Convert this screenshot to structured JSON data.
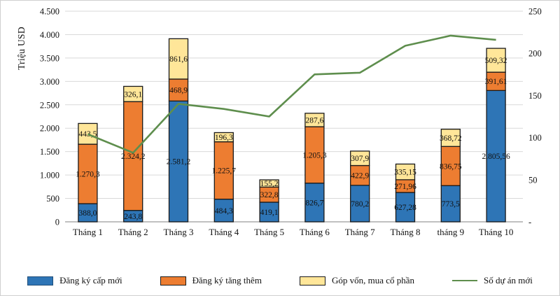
{
  "chart_data": {
    "type": "bar",
    "subtype": "stacked-bar-with-line-combo",
    "title": "",
    "categories": [
      "Tháng 1",
      "Tháng 2",
      "Tháng 3",
      "Tháng 4",
      "Tháng 5",
      "Tháng 6",
      "Tháng 7",
      "Tháng 8",
      "tháng 9",
      "Tháng 10"
    ],
    "bar_series": [
      {
        "name": "Đăng ký cấp mới",
        "color": "#2E75B6",
        "values": [
          388.0,
          243.8,
          2581.2,
          484.3,
          419.1,
          826.7,
          780.2,
          627.28,
          773.5,
          2805.56
        ],
        "labels": [
          "388,0",
          "243,8",
          "2.581,2",
          "484,3",
          "419,1",
          "826,7",
          "780,2",
          "627,28",
          "773,5",
          "2.805,56"
        ]
      },
      {
        "name": "Đăng ký tăng thêm",
        "color": "#ED7D31",
        "values": [
          1270.3,
          2324.2,
          468.9,
          1225.7,
          322.8,
          1205.3,
          422.9,
          271.96,
          836.75,
          391.61
        ],
        "labels": [
          "1.270,3",
          "2.324,2",
          "468,9",
          "1.225,7",
          "322,8",
          "1.205,3",
          "422,9",
          "271,96",
          "836,75",
          "391,61"
        ]
      },
      {
        "name": "Góp vốn, mua cổ phần",
        "color": "#FFE699",
        "values": [
          443.5,
          326.1,
          861.6,
          196.3,
          155.2,
          287.6,
          307.9,
          335.15,
          368.72,
          509.32
        ],
        "labels": [
          "443,5",
          "326,1",
          "861,6",
          "196,3",
          "155,2",
          "287,6",
          "307,9",
          "335,15",
          "368,72",
          "509,32"
        ]
      }
    ],
    "line_series": {
      "name": "Số dự án mới",
      "color": "#5E8E4D",
      "values": [
        104,
        82,
        140,
        134,
        125,
        175,
        177,
        209,
        221,
        216
      ]
    },
    "left_axis": {
      "title": "Triệu USD",
      "min": 0,
      "max": 4500,
      "step": 500,
      "ticks": [
        "4.500",
        "4.000",
        "3.500",
        "3.000",
        "2.500",
        "2.000",
        "1.500",
        "1.000",
        "500",
        "0"
      ]
    },
    "right_axis": {
      "min": 0,
      "max": 250,
      "step": 50,
      "ticks": [
        "250",
        "200",
        "150",
        "100",
        "50",
        "-"
      ]
    },
    "grid": true,
    "legend_position": "bottom"
  }
}
